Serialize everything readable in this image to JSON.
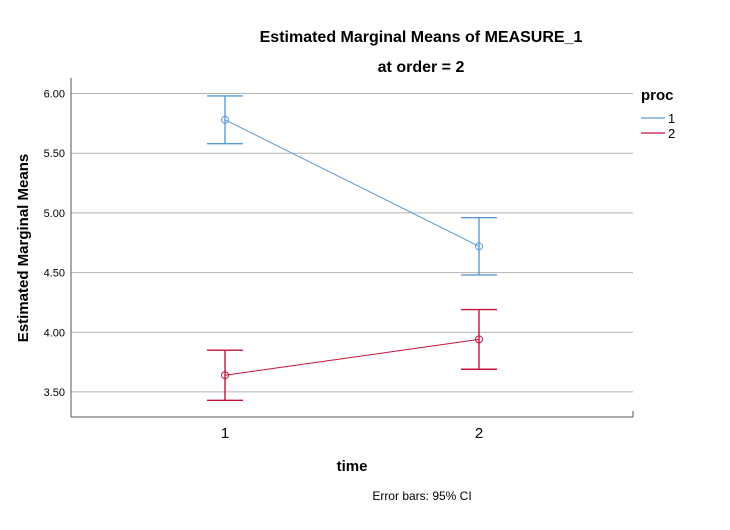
{
  "chart_data": {
    "type": "line",
    "title": "Estimated Marginal Means of MEASURE_1",
    "subtitle": "at order = 2",
    "xlabel": "time",
    "ylabel": "Estimated Marginal Means",
    "categories": [
      "1",
      "2"
    ],
    "ylim": [
      3.29,
      6.13
    ],
    "yticks": [
      "6.00",
      "5.50",
      "5.00",
      "4.50",
      "4.00",
      "3.50"
    ],
    "grid": true,
    "legend_title": "proc",
    "legend_position": "top-right",
    "series": [
      {
        "name": "1",
        "color": "#5b9bd5",
        "values": [
          5.78,
          4.72
        ],
        "ci_low": [
          5.58,
          4.48
        ],
        "ci_high": [
          5.98,
          4.96
        ]
      },
      {
        "name": "2",
        "color": "#c4143c",
        "values": [
          3.64,
          3.94
        ],
        "ci_low": [
          3.43,
          3.69
        ],
        "ci_high": [
          3.85,
          4.19
        ]
      }
    ],
    "footnote": "Error bars: 95% CI"
  }
}
